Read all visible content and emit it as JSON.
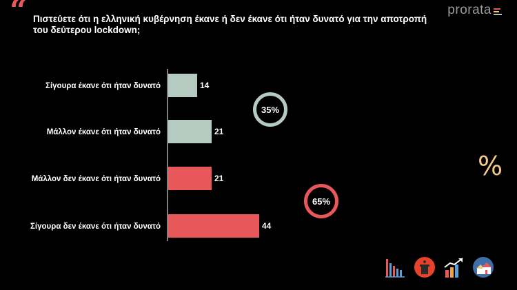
{
  "question": "Πιστεύετε ότι η ελληνική κυβέρνηση έκανε ή δεν έκανε ότι ήταν δυνατό για την αποτροπή του δεύτερου lockdown;",
  "logo": {
    "text": "prorata",
    "bar_colors": [
      "#e8585a",
      "#f3c98a",
      "#a9c4b9"
    ]
  },
  "colors": {
    "positive": "#b5cbc2",
    "negative": "#e8585a",
    "background": "#000000",
    "accent": "#f3c98a"
  },
  "chart_data": {
    "type": "bar",
    "orientation": "horizontal",
    "categories": [
      "Σίγουρα έκανε ότι ήταν δυνατό",
      "Μάλλον έκανε ότι ήταν δυνατό",
      "Μάλλον δεν έκανε ότι ήταν δυνατό",
      "Σίγουρα δεν έκανε ότι ήταν δυνατό"
    ],
    "values": [
      14,
      21,
      21,
      44
    ],
    "bar_colors": [
      "#b5cbc2",
      "#b5cbc2",
      "#e8585a",
      "#e8585a"
    ],
    "value_labels": [
      "14",
      "21",
      "21",
      "44"
    ],
    "grid": false,
    "legend": "none",
    "groups": [
      {
        "label": "35%",
        "value": 35,
        "color": "#b5cbc2"
      },
      {
        "label": "65%",
        "value": 65,
        "color": "#e8585a"
      }
    ]
  },
  "decor": {
    "percent_symbol": "%",
    "footer_icons": [
      "bar-chart-icon",
      "press-podium-icon",
      "growth-chart-icon",
      "houses-icon"
    ]
  }
}
